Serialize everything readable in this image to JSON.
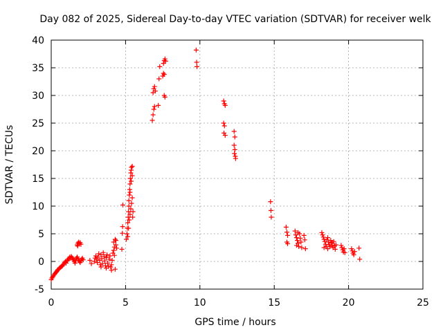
{
  "chart_data": {
    "type": "scatter",
    "title": "Day 082 of 2025, Sidereal Day-to-day VTEC variation (SDTVAR) for receiver welk",
    "xlabel": "GPS time / hours",
    "ylabel": "SDTVAR / TECUs",
    "xlim": [
      0,
      25
    ],
    "ylim": [
      -5,
      40
    ],
    "xticks": [
      0,
      5,
      10,
      15,
      20,
      25
    ],
    "yticks": [
      -5,
      0,
      5,
      10,
      15,
      20,
      25,
      30,
      35,
      40
    ],
    "grid": true,
    "marker": "+",
    "color": "#ff0000",
    "series": [
      {
        "name": "SDTVAR",
        "points": [
          [
            0.0,
            -3.3
          ],
          [
            0.05,
            -3.0
          ],
          [
            0.1,
            -2.8
          ],
          [
            0.15,
            -2.6
          ],
          [
            0.2,
            -2.4
          ],
          [
            0.25,
            -2.2
          ],
          [
            0.3,
            -2.0
          ],
          [
            0.35,
            -1.9
          ],
          [
            0.4,
            -1.7
          ],
          [
            0.45,
            -1.5
          ],
          [
            0.5,
            -1.4
          ],
          [
            0.55,
            -1.2
          ],
          [
            0.6,
            -1.1
          ],
          [
            0.65,
            -1.0
          ],
          [
            0.7,
            -0.9
          ],
          [
            0.75,
            -0.8
          ],
          [
            0.8,
            -0.6
          ],
          [
            0.85,
            -0.4
          ],
          [
            0.9,
            -0.2
          ],
          [
            0.95,
            0.0
          ],
          [
            1.0,
            -0.3
          ],
          [
            1.05,
            0.1
          ],
          [
            1.1,
            0.2
          ],
          [
            1.15,
            0.4
          ],
          [
            1.2,
            0.6
          ],
          [
            1.25,
            0.8
          ],
          [
            1.3,
            0.6
          ],
          [
            1.35,
            0.9
          ],
          [
            1.4,
            0.7
          ],
          [
            1.45,
            0.5
          ],
          [
            1.5,
            0.3
          ],
          [
            1.55,
            0.0
          ],
          [
            1.6,
            -0.3
          ],
          [
            1.65,
            0.2
          ],
          [
            1.7,
            0.6
          ],
          [
            1.75,
            0.8
          ],
          [
            1.8,
            0.5
          ],
          [
            1.85,
            0.2
          ],
          [
            1.9,
            0.0
          ],
          [
            1.95,
            -0.2
          ],
          [
            2.0,
            0.1
          ],
          [
            2.05,
            0.4
          ],
          [
            2.1,
            0.6
          ],
          [
            2.15,
            0.3
          ],
          [
            1.75,
            3.0
          ],
          [
            1.8,
            3.3
          ],
          [
            1.85,
            3.5
          ],
          [
            1.9,
            3.2
          ],
          [
            1.95,
            3.4
          ],
          [
            2.0,
            3.1
          ],
          [
            1.78,
            2.8
          ],
          [
            2.6,
            0.2
          ],
          [
            2.7,
            -0.4
          ],
          [
            2.9,
            0.0
          ],
          [
            2.95,
            0.6
          ],
          [
            3.0,
            1.0
          ],
          [
            3.05,
            0.4
          ],
          [
            3.1,
            -0.2
          ],
          [
            3.15,
            0.8
          ],
          [
            3.2,
            1.4
          ],
          [
            3.25,
            0.2
          ],
          [
            3.3,
            -0.6
          ],
          [
            3.35,
            1.2
          ],
          [
            3.4,
            0.5
          ],
          [
            3.45,
            -0.4
          ],
          [
            3.5,
            1.6
          ],
          [
            3.55,
            0.9
          ],
          [
            3.6,
            0.1
          ],
          [
            3.65,
            -0.8
          ],
          [
            3.7,
            0.7
          ],
          [
            3.75,
            1.2
          ],
          [
            3.8,
            -0.3
          ],
          [
            3.85,
            -0.9
          ],
          [
            3.9,
            0.4
          ],
          [
            3.95,
            1.0
          ],
          [
            4.0,
            -1.0
          ],
          [
            4.05,
            -0.6
          ],
          [
            4.1,
            0.2
          ],
          [
            4.15,
            1.5
          ],
          [
            4.2,
            2.0
          ],
          [
            4.25,
            1.1
          ],
          [
            4.3,
            -1.4
          ],
          [
            4.35,
            3.0
          ],
          [
            4.2,
            3.5
          ],
          [
            4.25,
            2.6
          ],
          [
            4.3,
            4.0
          ],
          [
            4.35,
            3.8
          ],
          [
            4.4,
            2.4
          ],
          [
            3.35,
            -1.0
          ],
          [
            3.7,
            -1.2
          ],
          [
            4.05,
            -1.6
          ],
          [
            4.82,
            10.2
          ],
          [
            4.8,
            6.3
          ],
          [
            4.78,
            5.1
          ],
          [
            4.75,
            2.2
          ],
          [
            5.05,
            4.0
          ],
          [
            5.1,
            5.0
          ],
          [
            5.12,
            6.0
          ],
          [
            5.15,
            7.0
          ],
          [
            5.18,
            8.0
          ],
          [
            5.2,
            9.0
          ],
          [
            5.22,
            11.0
          ],
          [
            5.25,
            12.0
          ],
          [
            5.28,
            13.0
          ],
          [
            5.3,
            14.0
          ],
          [
            5.32,
            15.0
          ],
          [
            5.35,
            16.0
          ],
          [
            5.38,
            16.5
          ],
          [
            5.4,
            17.0
          ],
          [
            5.45,
            17.2
          ],
          [
            5.2,
            6.0
          ],
          [
            5.25,
            7.5
          ],
          [
            5.3,
            8.5
          ],
          [
            5.35,
            9.5
          ],
          [
            5.4,
            10.5
          ],
          [
            5.45,
            11.5
          ],
          [
            5.5,
            9.0
          ],
          [
            5.48,
            8.0
          ],
          [
            5.15,
            4.5
          ],
          [
            5.22,
            10.0
          ],
          [
            5.3,
            12.5
          ],
          [
            5.38,
            14.5
          ],
          [
            5.45,
            15.5
          ],
          [
            6.8,
            25.5
          ],
          [
            6.85,
            26.5
          ],
          [
            6.9,
            27.5
          ],
          [
            6.95,
            28.0
          ],
          [
            6.85,
            30.5
          ],
          [
            6.9,
            31.2
          ],
          [
            6.95,
            31.6
          ],
          [
            7.0,
            30.8
          ],
          [
            7.2,
            28.2
          ],
          [
            7.25,
            33.0
          ],
          [
            7.3,
            35.2
          ],
          [
            7.5,
            33.5
          ],
          [
            7.55,
            34.0
          ],
          [
            7.6,
            33.8
          ],
          [
            7.55,
            35.8
          ],
          [
            7.6,
            36.3
          ],
          [
            7.65,
            36.6
          ],
          [
            7.7,
            36.2
          ],
          [
            7.6,
            30.0
          ],
          [
            7.65,
            29.7
          ],
          [
            9.75,
            38.2
          ],
          [
            9.78,
            36.0
          ],
          [
            9.8,
            35.2
          ],
          [
            11.6,
            29.0
          ],
          [
            11.65,
            28.5
          ],
          [
            11.7,
            28.2
          ],
          [
            11.6,
            25.0
          ],
          [
            11.65,
            24.5
          ],
          [
            11.62,
            23.2
          ],
          [
            11.7,
            22.8
          ],
          [
            12.3,
            23.5
          ],
          [
            12.35,
            22.5
          ],
          [
            12.3,
            21.0
          ],
          [
            12.35,
            20.2
          ],
          [
            12.38,
            19.0
          ],
          [
            12.4,
            18.6
          ],
          [
            12.32,
            19.5
          ],
          [
            14.75,
            10.8
          ],
          [
            14.78,
            9.2
          ],
          [
            14.8,
            8.0
          ],
          [
            15.8,
            6.2
          ],
          [
            15.85,
            5.3
          ],
          [
            15.9,
            4.7
          ],
          [
            15.85,
            3.5
          ],
          [
            15.9,
            3.2
          ],
          [
            16.4,
            5.5
          ],
          [
            16.45,
            4.8
          ],
          [
            16.5,
            4.3
          ],
          [
            16.55,
            3.8
          ],
          [
            16.6,
            3.3
          ],
          [
            16.65,
            2.7
          ],
          [
            16.7,
            5.0
          ],
          [
            16.75,
            4.2
          ],
          [
            16.8,
            3.5
          ],
          [
            16.85,
            2.5
          ],
          [
            16.5,
            2.9
          ],
          [
            16.6,
            5.2
          ],
          [
            17.0,
            4.7
          ],
          [
            17.05,
            3.9
          ],
          [
            17.1,
            2.3
          ],
          [
            18.2,
            5.2
          ],
          [
            18.25,
            4.8
          ],
          [
            18.3,
            4.4
          ],
          [
            18.35,
            4.0
          ],
          [
            18.4,
            3.6
          ],
          [
            18.45,
            3.1
          ],
          [
            18.5,
            2.7
          ],
          [
            18.55,
            3.9
          ],
          [
            18.6,
            4.3
          ],
          [
            18.65,
            3.5
          ],
          [
            18.7,
            3.0
          ],
          [
            18.75,
            2.7
          ],
          [
            18.8,
            3.8
          ],
          [
            18.85,
            3.4
          ],
          [
            18.9,
            2.9
          ],
          [
            18.95,
            2.5
          ],
          [
            19.0,
            3.6
          ],
          [
            19.05,
            2.8
          ],
          [
            19.1,
            2.2
          ],
          [
            19.15,
            3.0
          ],
          [
            18.35,
            2.5
          ],
          [
            18.6,
            2.3
          ],
          [
            18.9,
            3.3
          ],
          [
            19.5,
            2.9
          ],
          [
            19.55,
            2.5
          ],
          [
            19.6,
            2.1
          ],
          [
            19.65,
            1.7
          ],
          [
            19.7,
            2.3
          ],
          [
            19.75,
            1.6
          ],
          [
            20.2,
            2.3
          ],
          [
            20.25,
            1.9
          ],
          [
            20.3,
            1.5
          ],
          [
            20.35,
            1.2
          ],
          [
            20.4,
            1.8
          ],
          [
            20.7,
            2.4
          ],
          [
            20.75,
            0.4
          ]
        ]
      }
    ]
  }
}
